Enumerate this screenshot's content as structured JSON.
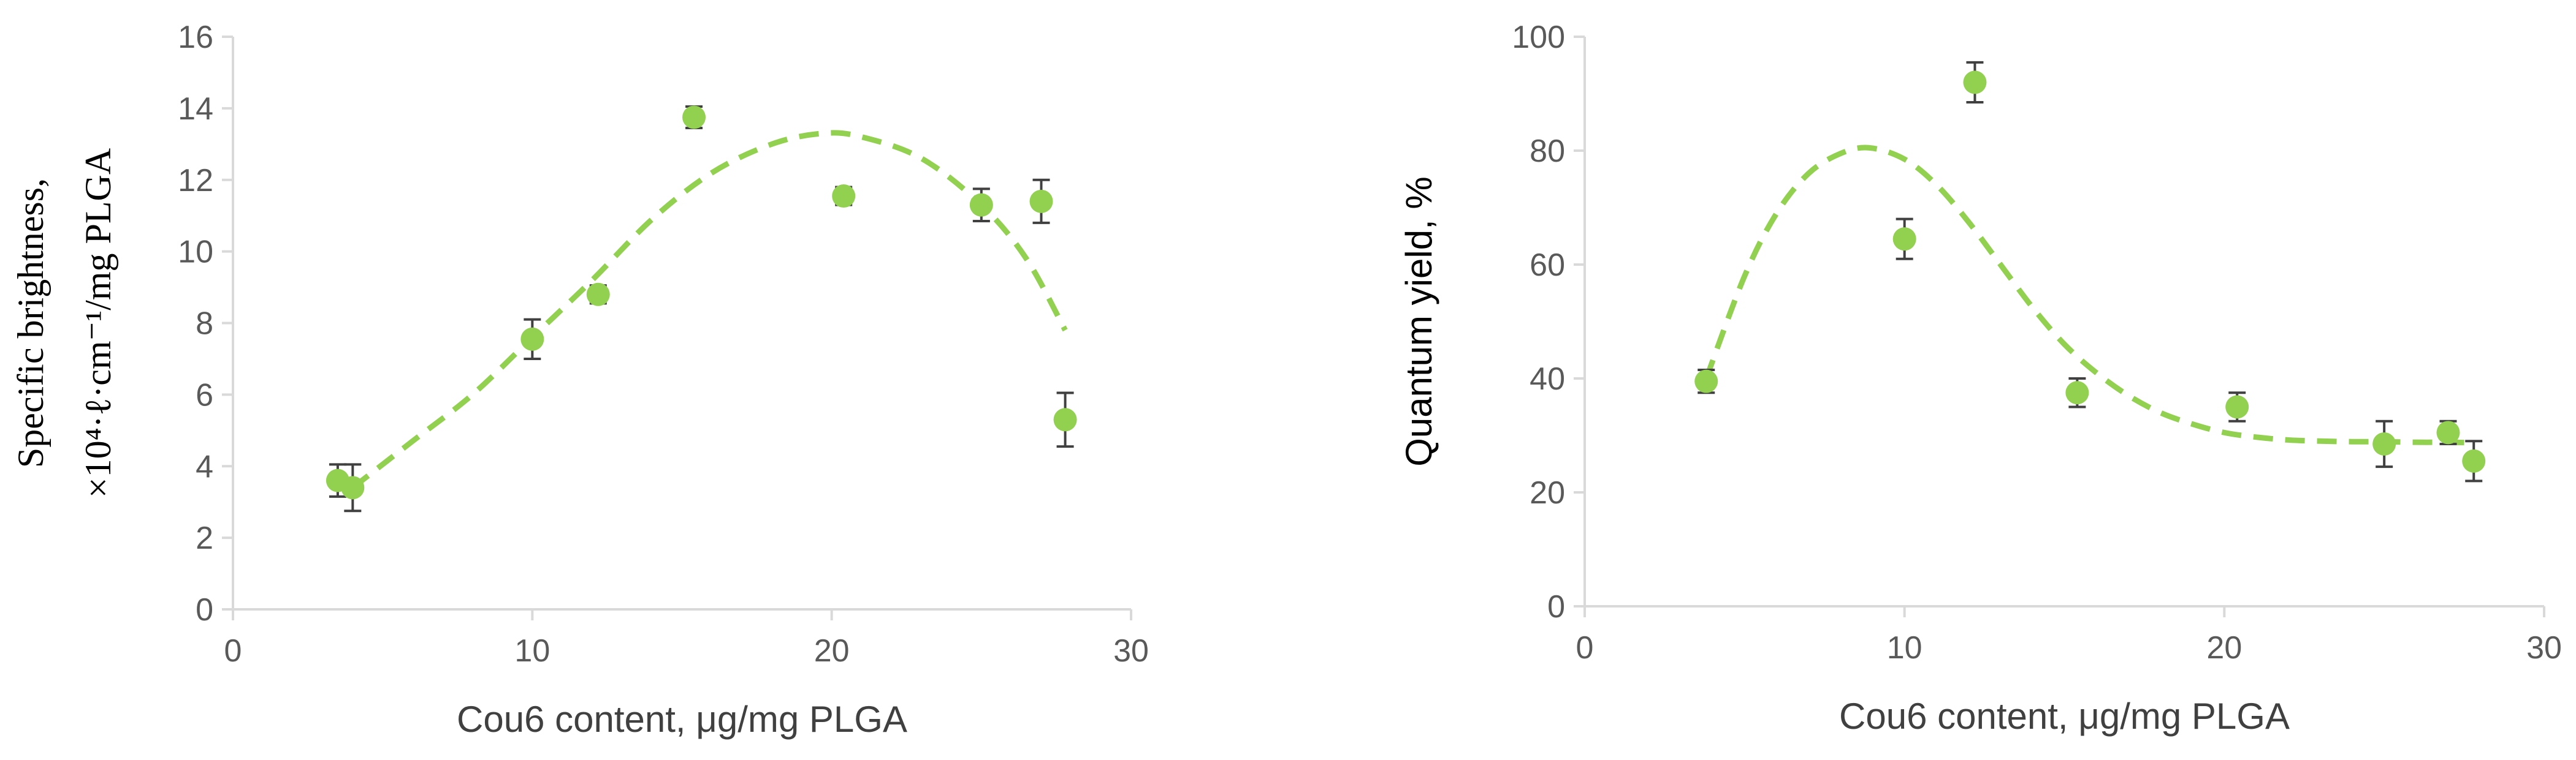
{
  "colors": {
    "marker": "#92d050",
    "fit": "#92d050",
    "error_bar": "#404040",
    "axis": "#d9d9d9",
    "tick_text": "#595959"
  },
  "chart_data": [
    {
      "type": "scatter",
      "xlabel": "Cou6 content, μg/mg PLGA",
      "ylabel": [
        "Specific brightness,",
        "×10⁴·ℓ·cm⁻¹/mg PLGA"
      ],
      "xlim": [
        0,
        30
      ],
      "ylim": [
        0,
        16
      ],
      "xticks": [
        0,
        10,
        20,
        30
      ],
      "yticks": [
        0,
        2,
        4,
        6,
        8,
        10,
        12,
        14,
        16
      ],
      "grid": false,
      "points": [
        {
          "x": 3.5,
          "y": 3.6,
          "err": 0.45
        },
        {
          "x": 4.0,
          "y": 3.4,
          "err": 0.65
        },
        {
          "x": 10.0,
          "y": 7.55,
          "err": 0.55
        },
        {
          "x": 12.2,
          "y": 8.8,
          "err": 0.25
        },
        {
          "x": 15.4,
          "y": 13.75,
          "err": 0.3
        },
        {
          "x": 20.4,
          "y": 11.55,
          "err": 0.25
        },
        {
          "x": 25.0,
          "y": 11.3,
          "err": 0.45
        },
        {
          "x": 27.0,
          "y": 11.4,
          "err": 0.6
        },
        {
          "x": 27.8,
          "y": 5.3,
          "err": 0.75
        }
      ],
      "fit": {
        "style": "dashed",
        "x": [
          4.0,
          6.0,
          8.0,
          10.0,
          12.0,
          14.0,
          16.0,
          18.0,
          19.7,
          21.0,
          23.0,
          25.0,
          26.5,
          27.8
        ],
        "y": [
          3.4,
          4.7,
          6.0,
          7.6,
          9.2,
          10.9,
          12.2,
          13.0,
          13.3,
          13.2,
          12.6,
          11.3,
          9.8,
          7.8
        ]
      }
    },
    {
      "type": "scatter",
      "xlabel": "Cou6 content, μg/mg PLGA",
      "ylabel": [
        "Quantum yield, %"
      ],
      "xlim": [
        0,
        30
      ],
      "ylim": [
        0,
        100
      ],
      "xticks": [
        0,
        10,
        20,
        30
      ],
      "yticks": [
        0,
        20,
        40,
        60,
        80,
        100
      ],
      "grid": false,
      "points": [
        {
          "x": 3.8,
          "y": 39.5,
          "err": 2.0
        },
        {
          "x": 10.0,
          "y": 64.5,
          "err": 3.5
        },
        {
          "x": 12.2,
          "y": 92.0,
          "err": 3.5
        },
        {
          "x": 15.4,
          "y": 37.5,
          "err": 2.5
        },
        {
          "x": 20.4,
          "y": 35.0,
          "err": 2.5
        },
        {
          "x": 25.0,
          "y": 28.5,
          "err": 4.0
        },
        {
          "x": 27.0,
          "y": 30.5,
          "err": 2.0
        },
        {
          "x": 27.8,
          "y": 25.5,
          "err": 3.5
        }
      ],
      "fit": {
        "style": "dashed",
        "x": [
          3.8,
          5.0,
          6.0,
          7.0,
          8.0,
          8.9,
          10.0,
          11.0,
          12.0,
          13.0,
          14.0,
          15.0,
          16.0,
          17.0,
          18.0,
          19.0,
          20.0,
          21.0,
          22.0,
          23.0,
          24.0,
          25.0,
          26.0,
          27.0,
          27.8
        ],
        "y": [
          40.0,
          58.0,
          69.0,
          76.0,
          79.5,
          80.5,
          78.5,
          74.0,
          67.5,
          60.0,
          52.5,
          46.0,
          41.0,
          37.0,
          34.0,
          32.0,
          30.5,
          29.7,
          29.2,
          29.0,
          28.9,
          28.9,
          28.8,
          28.8,
          28.7
        ]
      }
    }
  ]
}
